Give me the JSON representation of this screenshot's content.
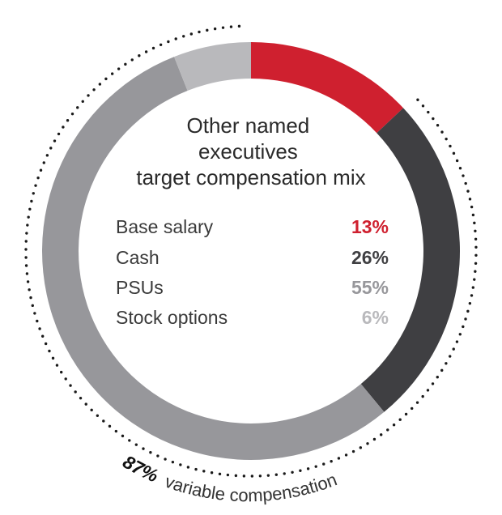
{
  "chart_data": {
    "type": "pie",
    "title": [
      "Other named",
      "executives",
      "target compensation mix"
    ],
    "categories": [
      "Base salary",
      "Cash",
      "PSUs",
      "Stock options"
    ],
    "values": [
      13,
      26,
      55,
      6
    ],
    "value_labels": [
      "13%",
      "26%",
      "55%",
      "6%"
    ],
    "colors": [
      "#cf202f",
      "#3f3f42",
      "#97979b",
      "#b9b9bc"
    ],
    "annotation": {
      "value": "87%",
      "text": "variable compensation"
    }
  }
}
